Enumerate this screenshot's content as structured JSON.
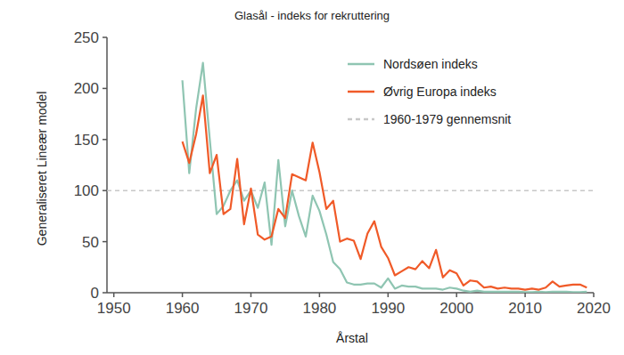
{
  "chart_data": {
    "type": "line",
    "title": "Glasål - indeks for rekruttering",
    "x_label": "Årstal",
    "y_label": "Generaliseret Lineær model",
    "x": [
      1960,
      1961,
      1962,
      1963,
      1964,
      1965,
      1966,
      1967,
      1968,
      1969,
      1970,
      1971,
      1972,
      1973,
      1974,
      1975,
      1976,
      1977,
      1978,
      1979,
      1980,
      1981,
      1982,
      1983,
      1984,
      1985,
      1986,
      1987,
      1988,
      1989,
      1990,
      1991,
      1992,
      1993,
      1994,
      1995,
      1996,
      1997,
      1998,
      1999,
      2000,
      2001,
      2002,
      2003,
      2004,
      2005,
      2006,
      2007,
      2008,
      2009,
      2010,
      2011,
      2012,
      2013,
      2014,
      2015,
      2016,
      2017,
      2018,
      2019
    ],
    "series": [
      {
        "name": "Nordsøen indeks",
        "color": "#8fc5b2",
        "values": [
          208,
          117,
          180,
          225,
          150,
          77,
          85,
          100,
          110,
          90,
          100,
          83,
          108,
          47,
          130,
          65,
          100,
          75,
          55,
          95,
          80,
          57,
          30,
          23,
          10,
          8,
          8,
          9,
          9,
          5,
          14,
          4,
          7,
          6,
          6,
          4,
          4,
          4,
          3,
          5,
          4,
          2,
          1,
          2,
          1,
          1,
          1,
          1,
          1,
          1,
          0.5,
          0.5,
          1,
          0.5,
          1,
          1,
          1,
          0.5,
          0.5,
          1
        ]
      },
      {
        "name": "Øvrig Europa indeks",
        "color": "#f05a28",
        "values": [
          148,
          127,
          155,
          193,
          117,
          135,
          77,
          82,
          131,
          67,
          102,
          57,
          52,
          55,
          82,
          73,
          116,
          113,
          110,
          147,
          118,
          82,
          90,
          50,
          53,
          51,
          33,
          58,
          70,
          45,
          34,
          17,
          21,
          25,
          23,
          31,
          24,
          42,
          15,
          22,
          19,
          7,
          12,
          11,
          5,
          6,
          4,
          5,
          4,
          4,
          3,
          4,
          3,
          5,
          11,
          6,
          7,
          8,
          8,
          5
        ]
      }
    ],
    "reference_line": {
      "y": 100,
      "name": "1960-1979 gennemsnit",
      "color": "#c8c8c8",
      "line_style": "dashed"
    },
    "xlim": [
      1949,
      2020
    ],
    "xticks": [
      1950,
      1960,
      1970,
      1980,
      1990,
      2000,
      2010,
      2020
    ],
    "ylim": [
      0,
      250
    ],
    "yticks": [
      0,
      50,
      100,
      150,
      200,
      250
    ],
    "grid": false,
    "legend": "top-right"
  }
}
